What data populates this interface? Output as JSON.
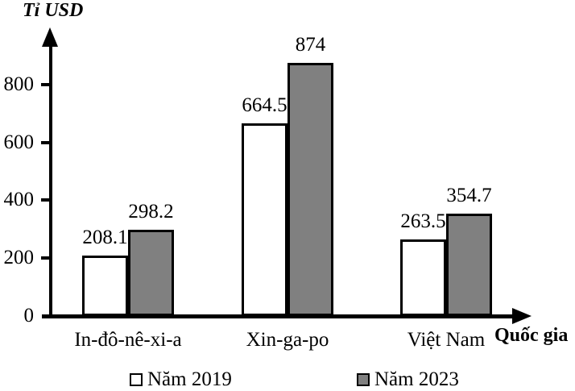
{
  "chart_data": {
    "type": "bar",
    "title": "",
    "ylabel": "Tỉ USD",
    "xlabel": "Quốc gia",
    "categories": [
      "In-đô-nê-xi-a",
      "Xin-ga-po",
      "Việt Nam"
    ],
    "series": [
      {
        "name": "Năm 2019",
        "color": "#ffffff",
        "values": [
          208.1,
          664.5,
          263.5
        ]
      },
      {
        "name": "Năm 2023",
        "color": "#808080",
        "values": [
          298.2,
          874,
          354.7
        ]
      }
    ],
    "yticks": [
      0,
      200,
      400,
      600,
      800
    ],
    "ylim": [
      0,
      950
    ],
    "grid": false,
    "legend_position": "bottom",
    "bar_labels": true,
    "colors": {
      "axis": "#000000",
      "bar_border": "#000000",
      "background": "#ffffff"
    }
  }
}
